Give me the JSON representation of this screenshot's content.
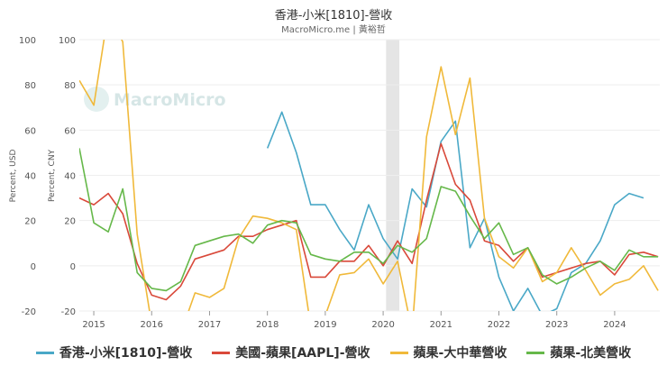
{
  "header": {
    "title": "香港-小米[1810]-營收",
    "subtitle": "MacroMicro.me | 黃裕哲",
    "watermark": "MacroMicro"
  },
  "colors": {
    "xiaomi": "#4aa8c7",
    "apple_us": "#d9493a",
    "apple_gc": "#f0b93a",
    "apple_na": "#66b84a",
    "shade": "#e5e5e5",
    "grid": "#eeeeee"
  },
  "chart_data": {
    "type": "line",
    "xlim": [
      2014.75,
      2024.78
    ],
    "x_ticks": [
      2015,
      2016,
      2017,
      2018,
      2019,
      2020,
      2021,
      2022,
      2023,
      2024
    ],
    "left_axis": {
      "title": "Percent, USD",
      "ylim": [
        -20,
        100
      ],
      "ticks": [
        -20,
        0,
        20,
        40,
        60,
        80,
        100
      ]
    },
    "right_axis": {
      "title": "Percent, CNY",
      "ylim": [
        -20,
        100
      ],
      "ticks": [
        -20,
        0,
        20,
        40,
        60,
        80,
        100
      ]
    },
    "shaded_region": [
      2020.05,
      2020.28
    ],
    "grid": true,
    "legend_position": "bottom",
    "series": [
      {
        "name": "香港-小米[1810]-營收",
        "color_key": "xiaomi",
        "points": [
          [
            2018.0,
            52
          ],
          [
            2018.25,
            68
          ],
          [
            2018.5,
            50
          ],
          [
            2018.75,
            27
          ],
          [
            2019.0,
            27
          ],
          [
            2019.25,
            16
          ],
          [
            2019.5,
            7
          ],
          [
            2019.75,
            27
          ],
          [
            2020.0,
            12
          ],
          [
            2020.25,
            3
          ],
          [
            2020.5,
            34
          ],
          [
            2020.75,
            26
          ],
          [
            2021.0,
            55
          ],
          [
            2021.25,
            64
          ],
          [
            2021.5,
            8
          ],
          [
            2021.75,
            21
          ],
          [
            2022.0,
            -5
          ],
          [
            2022.25,
            -20
          ],
          [
            2022.5,
            -10
          ],
          [
            2022.75,
            -22
          ],
          [
            2023.0,
            -19
          ],
          [
            2023.25,
            -3
          ],
          [
            2023.5,
            1
          ],
          [
            2023.75,
            11
          ],
          [
            2024.0,
            27
          ],
          [
            2024.25,
            32
          ],
          [
            2024.5,
            30
          ]
        ]
      },
      {
        "name": "美國-蘋果[AAPL]-營收",
        "color_key": "apple_us",
        "points": [
          [
            2014.75,
            30
          ],
          [
            2015.0,
            27
          ],
          [
            2015.25,
            32
          ],
          [
            2015.5,
            23
          ],
          [
            2015.75,
            1
          ],
          [
            2016.0,
            -13
          ],
          [
            2016.25,
            -15
          ],
          [
            2016.5,
            -9
          ],
          [
            2016.75,
            3
          ],
          [
            2017.0,
            5
          ],
          [
            2017.25,
            7
          ],
          [
            2017.5,
            13
          ],
          [
            2017.75,
            13
          ],
          [
            2018.0,
            16
          ],
          [
            2018.25,
            18
          ],
          [
            2018.5,
            20
          ],
          [
            2018.75,
            -5
          ],
          [
            2019.0,
            -5
          ],
          [
            2019.25,
            2
          ],
          [
            2019.5,
            2
          ],
          [
            2019.75,
            9
          ],
          [
            2020.0,
            0
          ],
          [
            2020.25,
            11
          ],
          [
            2020.5,
            1
          ],
          [
            2020.75,
            29
          ],
          [
            2021.0,
            54
          ],
          [
            2021.25,
            36
          ],
          [
            2021.5,
            29
          ],
          [
            2021.75,
            11
          ],
          [
            2022.0,
            9
          ],
          [
            2022.25,
            2
          ],
          [
            2022.5,
            8
          ],
          [
            2022.75,
            -5
          ],
          [
            2023.0,
            -3
          ],
          [
            2023.25,
            -1
          ],
          [
            2023.5,
            1
          ],
          [
            2023.75,
            2
          ],
          [
            2024.0,
            -4
          ],
          [
            2024.25,
            5
          ],
          [
            2024.5,
            6
          ],
          [
            2024.75,
            4
          ]
        ]
      },
      {
        "name": "蘋果-大中華營收",
        "color_key": "apple_gc",
        "points": [
          [
            2014.75,
            82
          ],
          [
            2015.0,
            71
          ],
          [
            2015.25,
            112
          ],
          [
            2015.5,
            99
          ],
          [
            2015.75,
            14
          ],
          [
            2016.0,
            -26
          ],
          [
            2016.25,
            -33
          ],
          [
            2016.5,
            -30
          ],
          [
            2016.75,
            -12
          ],
          [
            2017.0,
            -14
          ],
          [
            2017.25,
            -10
          ],
          [
            2017.5,
            12
          ],
          [
            2017.75,
            22
          ],
          [
            2018.0,
            21
          ],
          [
            2018.25,
            19
          ],
          [
            2018.5,
            16
          ],
          [
            2018.75,
            -27
          ],
          [
            2019.0,
            -22
          ],
          [
            2019.25,
            -4
          ],
          [
            2019.5,
            -3
          ],
          [
            2019.75,
            3
          ],
          [
            2020.0,
            -8
          ],
          [
            2020.25,
            2
          ],
          [
            2020.5,
            -29
          ],
          [
            2020.75,
            57
          ],
          [
            2021.0,
            88
          ],
          [
            2021.25,
            58
          ],
          [
            2021.5,
            83
          ],
          [
            2021.75,
            21
          ],
          [
            2022.0,
            4
          ],
          [
            2022.25,
            -1
          ],
          [
            2022.5,
            8
          ],
          [
            2022.75,
            -7
          ],
          [
            2023.0,
            -3
          ],
          [
            2023.25,
            8
          ],
          [
            2023.5,
            -2
          ],
          [
            2023.75,
            -13
          ],
          [
            2024.0,
            -8
          ],
          [
            2024.25,
            -6
          ],
          [
            2024.5,
            0
          ],
          [
            2024.75,
            -11
          ]
        ]
      },
      {
        "name": "蘋果-北美營收",
        "color_key": "apple_na",
        "points": [
          [
            2014.75,
            52
          ],
          [
            2015.0,
            19
          ],
          [
            2015.25,
            15
          ],
          [
            2015.5,
            34
          ],
          [
            2015.75,
            -3
          ],
          [
            2016.0,
            -10
          ],
          [
            2016.25,
            -11
          ],
          [
            2016.5,
            -7
          ],
          [
            2016.75,
            9
          ],
          [
            2017.0,
            11
          ],
          [
            2017.25,
            13
          ],
          [
            2017.5,
            14
          ],
          [
            2017.75,
            10
          ],
          [
            2018.0,
            18
          ],
          [
            2018.25,
            20
          ],
          [
            2018.5,
            19
          ],
          [
            2018.75,
            5
          ],
          [
            2019.0,
            3
          ],
          [
            2019.25,
            2
          ],
          [
            2019.5,
            6
          ],
          [
            2019.75,
            6
          ],
          [
            2020.0,
            1
          ],
          [
            2020.25,
            9
          ],
          [
            2020.5,
            6
          ],
          [
            2020.75,
            12
          ],
          [
            2021.0,
            35
          ],
          [
            2021.25,
            33
          ],
          [
            2021.5,
            22
          ],
          [
            2021.75,
            12
          ],
          [
            2022.0,
            19
          ],
          [
            2022.25,
            5
          ],
          [
            2022.5,
            8
          ],
          [
            2022.75,
            -4
          ],
          [
            2023.0,
            -8
          ],
          [
            2023.25,
            -5
          ],
          [
            2023.5,
            -1
          ],
          [
            2023.75,
            2
          ],
          [
            2024.0,
            -2
          ],
          [
            2024.25,
            7
          ],
          [
            2024.5,
            4
          ],
          [
            2024.75,
            4
          ]
        ]
      }
    ]
  }
}
